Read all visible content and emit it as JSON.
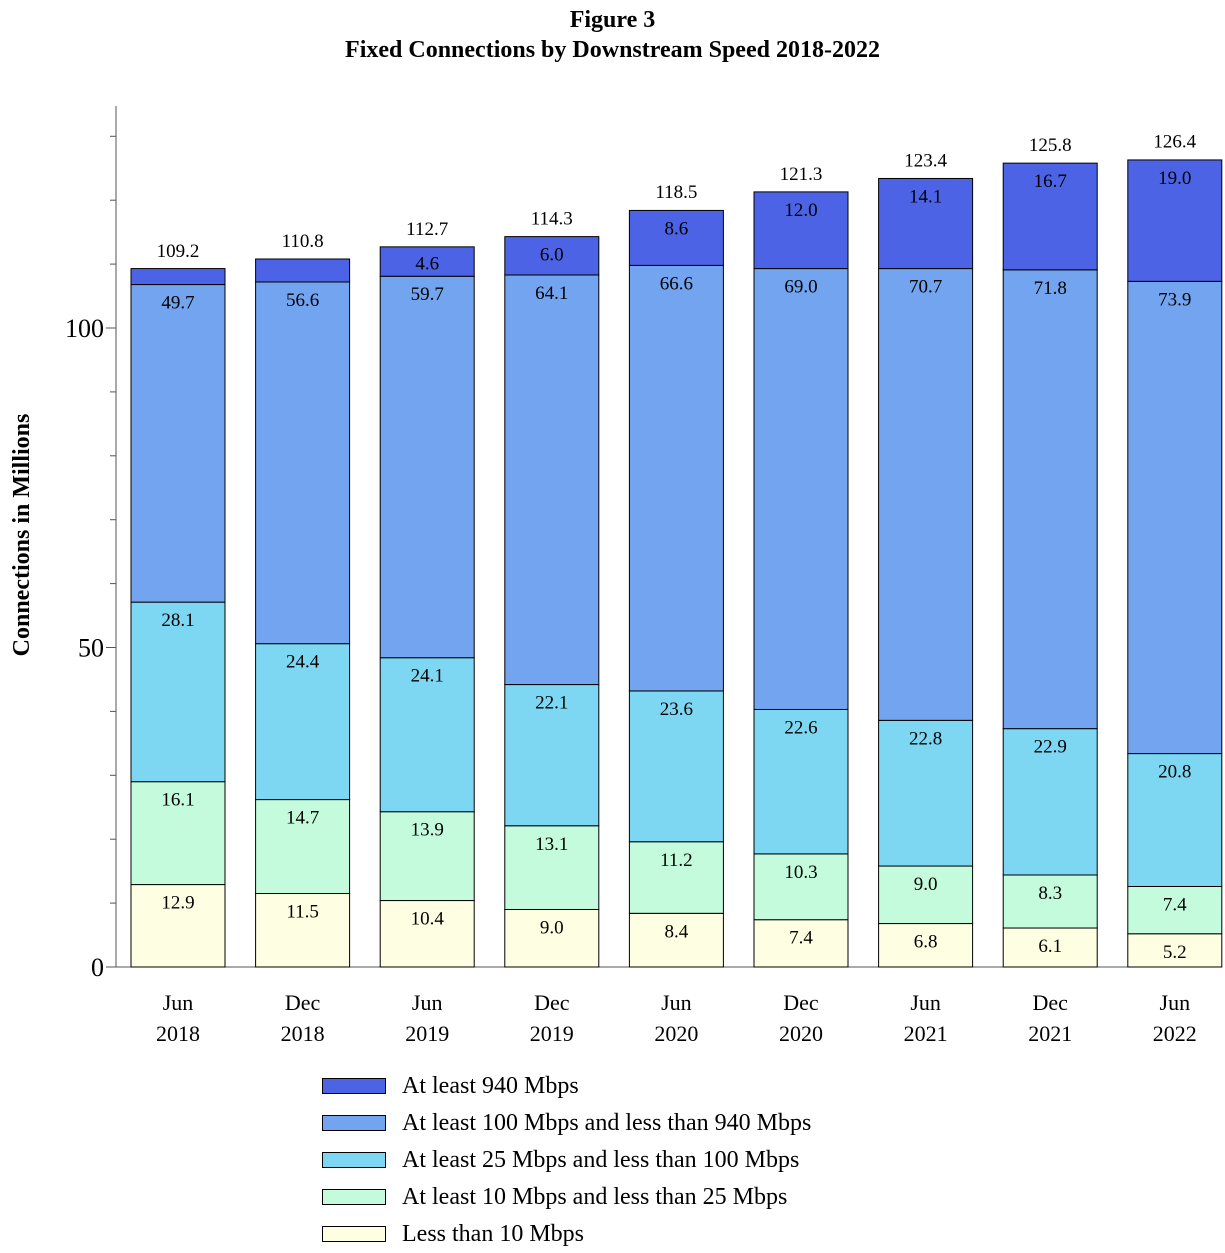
{
  "title": {
    "line1": "Figure 3",
    "line2": "Fixed Connections by Downstream Speed 2018-2022"
  },
  "chart_data": {
    "type": "bar",
    "stacked": true,
    "title": "Figure 3 Fixed Connections by Downstream Speed 2018-2022",
    "xlabel": "",
    "ylabel": "Connections in Millions",
    "ylim": [
      0,
      135
    ],
    "yticks": [
      0,
      50,
      100
    ],
    "grid": false,
    "legend_position": "bottom",
    "categories": [
      [
        "Jun",
        "2018"
      ],
      [
        "Dec",
        "2018"
      ],
      [
        "Jun",
        "2019"
      ],
      [
        "Dec",
        "2019"
      ],
      [
        "Jun",
        "2020"
      ],
      [
        "Dec",
        "2020"
      ],
      [
        "Jun",
        "2021"
      ],
      [
        "Dec",
        "2021"
      ],
      [
        "Jun",
        "2022"
      ]
    ],
    "totals": [
      109.2,
      110.8,
      112.7,
      114.3,
      118.5,
      121.3,
      123.4,
      125.8,
      126.4
    ],
    "series": [
      {
        "name": "Less than 10 Mbps",
        "color": "#FEFEE2",
        "values": [
          12.9,
          11.5,
          10.4,
          9.0,
          8.4,
          7.4,
          6.8,
          6.1,
          5.2
        ],
        "labels": [
          "12.9",
          "11.5",
          "10.4",
          "9.0",
          "8.4",
          "7.4",
          "6.8",
          "6.1",
          "5.2"
        ]
      },
      {
        "name": "At least 10 Mbps and less than 25 Mbps",
        "color": "#C3FBDC",
        "values": [
          16.1,
          14.7,
          13.9,
          13.1,
          11.2,
          10.3,
          9.0,
          8.3,
          7.4
        ],
        "labels": [
          "16.1",
          "14.7",
          "13.9",
          "13.1",
          "11.2",
          "10.3",
          "9.0",
          "8.3",
          "7.4"
        ]
      },
      {
        "name": "At least 25 Mbps and less than 100 Mbps",
        "color": "#7ED7F2",
        "values": [
          28.1,
          24.4,
          24.1,
          22.1,
          23.6,
          22.6,
          22.8,
          22.9,
          20.8
        ],
        "labels": [
          "28.1",
          "24.4",
          "24.1",
          "22.1",
          "23.6",
          "22.6",
          "22.8",
          "22.9",
          "20.8"
        ]
      },
      {
        "name": "At least 100 Mbps and less than 940 Mbps",
        "color": "#72A4F0",
        "values": [
          49.7,
          56.6,
          59.7,
          64.1,
          66.6,
          69.0,
          70.7,
          71.8,
          73.9
        ],
        "labels": [
          "49.7",
          "56.6",
          "59.7",
          "64.1",
          "66.6",
          "69.0",
          "70.7",
          "71.8",
          "73.9"
        ]
      },
      {
        "name": "At least 940 Mbps",
        "color": "#4B63E4",
        "values": [
          2.5,
          3.6,
          4.6,
          6.0,
          8.6,
          12.0,
          14.1,
          16.7,
          19.0
        ],
        "labels": [
          "",
          "",
          "4.6",
          "6.0",
          "8.6",
          "12.0",
          "14.1",
          "16.7",
          "19.0"
        ]
      }
    ]
  }
}
